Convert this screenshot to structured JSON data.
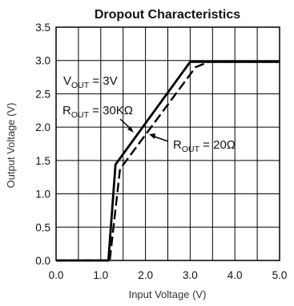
{
  "chart_data": {
    "type": "line",
    "title": "Dropout Characteristics",
    "xlabel": "Input Voltage (V)",
    "ylabel": "Output Voltage (V)",
    "xlim": [
      0,
      5
    ],
    "ylim": [
      0,
      3.5
    ],
    "x_ticks": [
      "0.0",
      "1.0",
      "2.0",
      "3.0",
      "4.0",
      "5.0"
    ],
    "y_ticks": [
      "0.0",
      "0.5",
      "1.0",
      "1.5",
      "2.0",
      "2.5",
      "3.0",
      "3.5"
    ],
    "grid": true,
    "series": [
      {
        "label_id": "r30k",
        "style": "solid",
        "color": "#000000",
        "points": [
          [
            0,
            0
          ],
          [
            1.17,
            0
          ],
          [
            1.33,
            1.44
          ],
          [
            3.0,
            2.98
          ],
          [
            5.0,
            2.98
          ]
        ]
      },
      {
        "label_id": "r20",
        "style": "dashed",
        "color": "#000000",
        "points": [
          [
            0,
            0
          ],
          [
            1.2,
            0
          ],
          [
            1.43,
            1.37
          ],
          [
            3.12,
            2.9
          ],
          [
            3.42,
            2.98
          ],
          [
            5.0,
            2.98
          ]
        ]
      }
    ],
    "annotations": {
      "vout": {
        "main": "V",
        "sub": "OUT",
        "rest": " = 3V"
      },
      "r30k": {
        "main": "R",
        "sub": "OUT",
        "rest": " = 30KΩ"
      },
      "r20": {
        "main": "R",
        "sub": "OUT",
        "rest": " = 20Ω"
      }
    }
  }
}
